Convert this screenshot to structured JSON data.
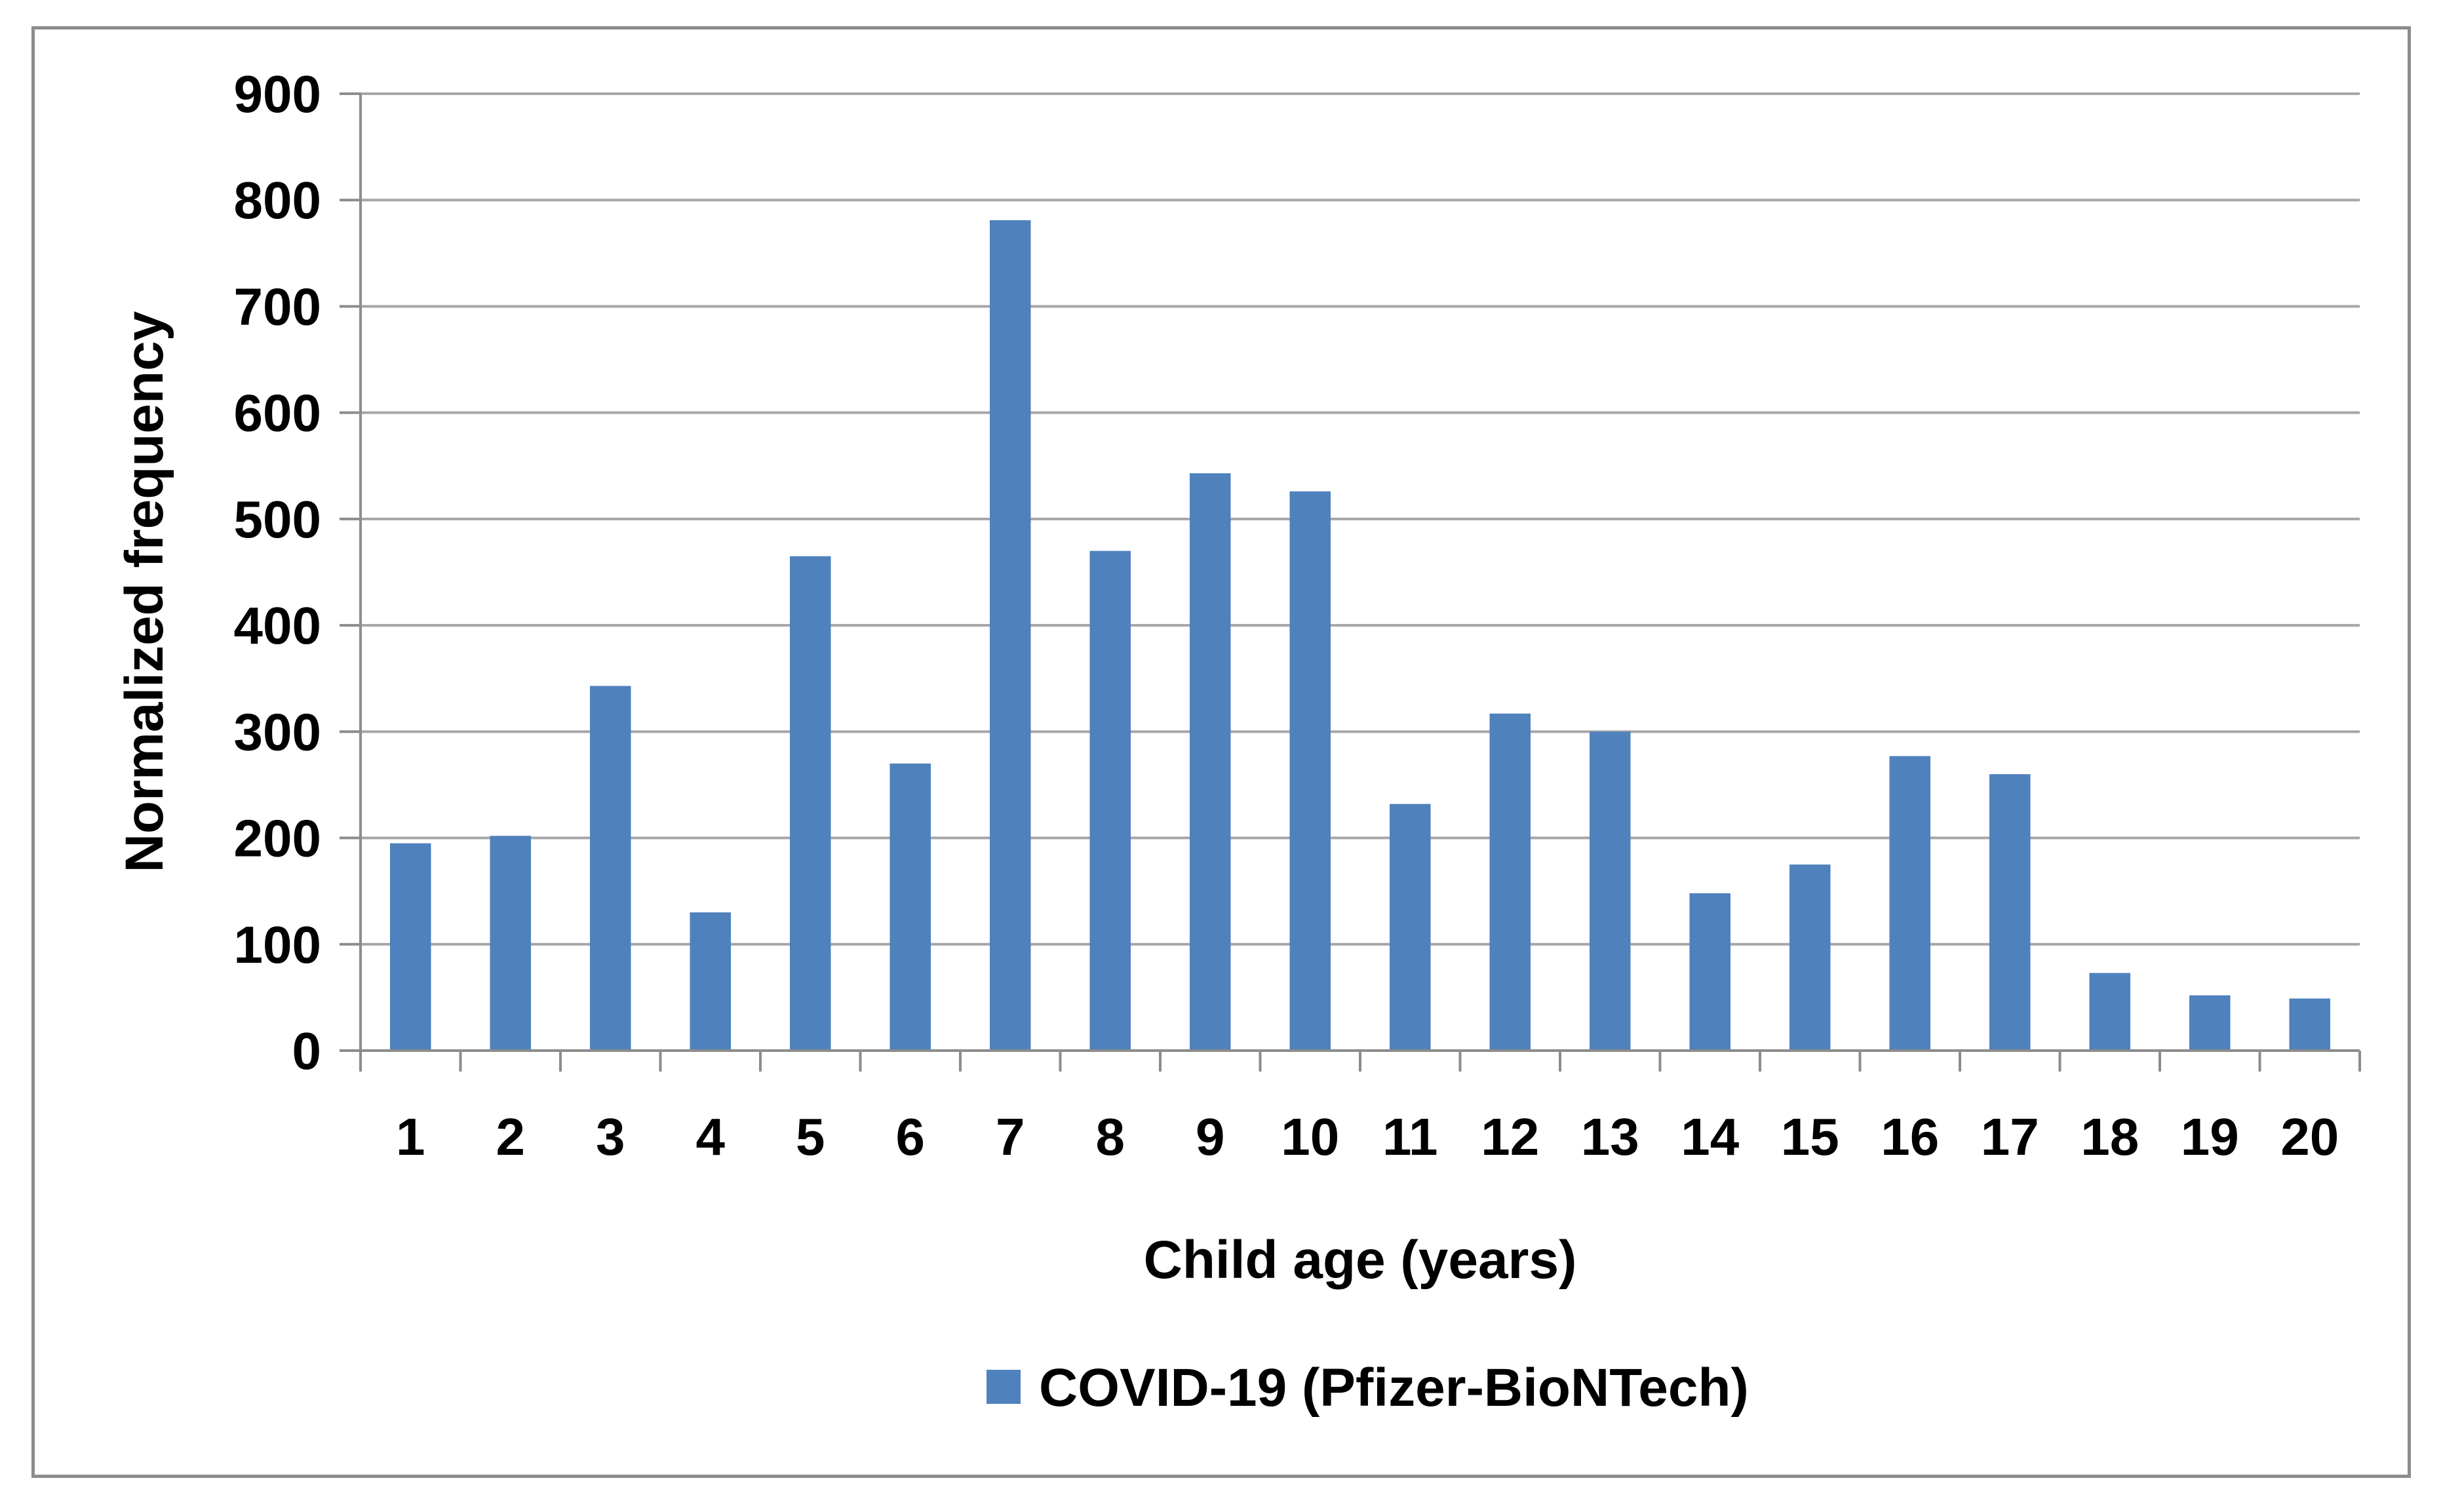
{
  "chart_data": {
    "type": "bar",
    "title": "",
    "xlabel": "Child age (years)",
    "ylabel": "Normalized frequency",
    "categories": [
      "1",
      "2",
      "3",
      "4",
      "5",
      "6",
      "7",
      "8",
      "9",
      "10",
      "11",
      "12",
      "13",
      "14",
      "15",
      "16",
      "17",
      "18",
      "19",
      "20"
    ],
    "series": [
      {
        "name": "COVID-19 (Pfizer-BioNTech)",
        "color": "#4f81bd",
        "values": [
          195,
          202,
          343,
          130,
          465,
          270,
          781,
          470,
          543,
          526,
          232,
          317,
          300,
          148,
          175,
          277,
          260,
          73,
          52,
          49
        ]
      }
    ],
    "ylim": [
      0,
      900
    ],
    "yticks": [
      0,
      100,
      200,
      300,
      400,
      500,
      600,
      700,
      800,
      900
    ],
    "grid": true,
    "legend": "bottom"
  }
}
